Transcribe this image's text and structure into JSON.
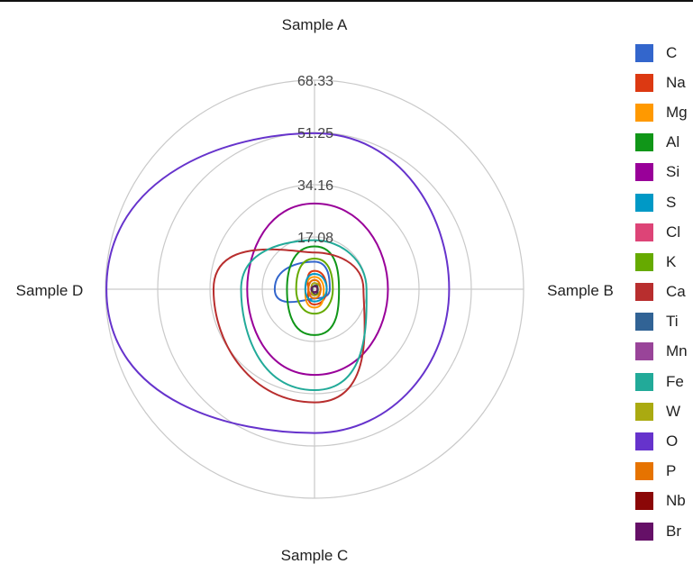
{
  "chart_data": {
    "type": "radar",
    "axes": [
      "Sample A",
      "Sample B",
      "Sample C",
      "Sample D"
    ],
    "rlim": [
      0,
      68.33
    ],
    "tick_labels": [
      "0",
      "17.08",
      "34.16",
      "51.25",
      "68.33"
    ],
    "tick_values": [
      0,
      17.08,
      34.16,
      51.25,
      68.33
    ],
    "grid": true,
    "legend_position": "right",
    "series": [
      {
        "name": "C",
        "color": "#3366cc",
        "values": [
          9,
          5,
          3,
          13
        ]
      },
      {
        "name": "Na",
        "color": "#dc3912",
        "values": [
          6,
          4,
          5,
          2
        ]
      },
      {
        "name": "Mg",
        "color": "#ff9900",
        "values": [
          4,
          3,
          6,
          3
        ]
      },
      {
        "name": "Al",
        "color": "#109618",
        "values": [
          14,
          8,
          15,
          9
        ]
      },
      {
        "name": "Si",
        "color": "#990099",
        "values": [
          28,
          24,
          28,
          22
        ]
      },
      {
        "name": "S",
        "color": "#0099c6",
        "values": [
          5,
          4,
          4,
          3
        ]
      },
      {
        "name": "Cl",
        "color": "#dd4477",
        "values": [
          3,
          2,
          2,
          2
        ]
      },
      {
        "name": "K",
        "color": "#66aa00",
        "values": [
          10,
          6,
          8,
          6
        ]
      },
      {
        "name": "Ca",
        "color": "#b82e2e",
        "values": [
          12,
          16,
          37,
          33
        ]
      },
      {
        "name": "Ti",
        "color": "#316395",
        "values": [
          2,
          1,
          2,
          1
        ]
      },
      {
        "name": "Mn",
        "color": "#994499",
        "values": [
          1,
          1,
          1,
          1
        ]
      },
      {
        "name": "Fe",
        "color": "#22aa99",
        "values": [
          16,
          17,
          33,
          24
        ]
      },
      {
        "name": "W",
        "color": "#aaaa11",
        "values": [
          2,
          2,
          2,
          1
        ]
      },
      {
        "name": "O",
        "color": "#6633cc",
        "values": [
          51,
          44,
          47,
          68
        ]
      },
      {
        "name": "P",
        "color": "#e67300",
        "values": [
          3,
          2,
          3,
          2
        ]
      },
      {
        "name": "Nb",
        "color": "#8b0707",
        "values": [
          1,
          1,
          1,
          1
        ]
      },
      {
        "name": "Br",
        "color": "#651067",
        "values": [
          1,
          1,
          1,
          1
        ]
      }
    ]
  }
}
